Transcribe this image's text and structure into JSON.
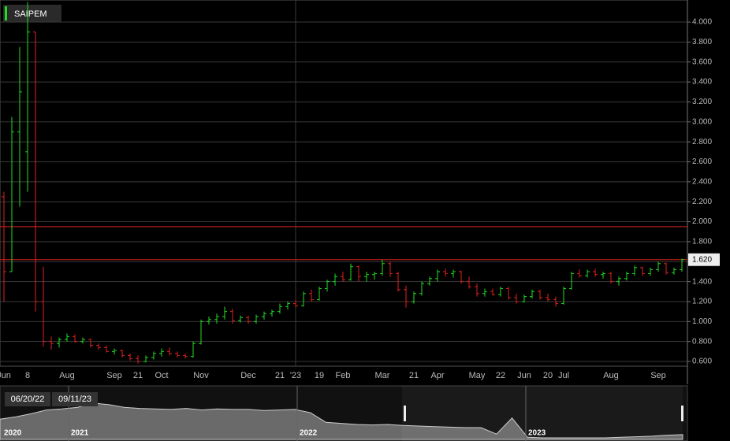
{
  "chart_data": {
    "type": "ohlc",
    "ylim": [
      0.553,
      4.221
    ],
    "yticks": [
      {
        "value": 0.6,
        "label": "0.600"
      },
      {
        "value": 0.8,
        "label": "0.800"
      },
      {
        "value": 1.0,
        "label": "1.000"
      },
      {
        "value": 1.2,
        "label": "1.200"
      },
      {
        "value": 1.4,
        "label": "1.400"
      },
      {
        "value": 1.6,
        "label": "1.600"
      },
      {
        "value": 1.8,
        "label": "1.800"
      },
      {
        "value": 2.0,
        "label": "2.000"
      },
      {
        "value": 2.2,
        "label": "2.200"
      },
      {
        "value": 2.4,
        "label": "2.400"
      },
      {
        "value": 2.6,
        "label": "2.600"
      },
      {
        "value": 2.8,
        "label": "2.800"
      },
      {
        "value": 3.0,
        "label": "3.000"
      },
      {
        "value": 3.2,
        "label": "3.200"
      },
      {
        "value": 3.4,
        "label": "3.400"
      },
      {
        "value": 3.6,
        "label": "3.600"
      },
      {
        "value": 3.8,
        "label": "3.800"
      },
      {
        "value": 4.0,
        "label": "4.000"
      }
    ],
    "grid": true,
    "categories": [
      "Jun",
      null,
      null,
      "8",
      null,
      null,
      null,
      null,
      "Aug",
      null,
      null,
      null,
      null,
      null,
      "Sep",
      null,
      null,
      "21",
      null,
      null,
      "Oct",
      null,
      null,
      null,
      null,
      "Nov",
      null,
      null,
      null,
      null,
      null,
      "Dec",
      null,
      null,
      null,
      "21",
      null,
      "'23",
      null,
      null,
      "19",
      null,
      null,
      "Feb",
      null,
      null,
      null,
      null,
      "Mar",
      null,
      null,
      null,
      "21",
      null,
      null,
      "Apr",
      null,
      null,
      null,
      null,
      "May",
      null,
      null,
      "22",
      null,
      null,
      "Jun",
      null,
      null,
      "20",
      null,
      "Jul",
      null,
      null,
      null,
      null,
      null,
      "Aug",
      null,
      null,
      null,
      null,
      null,
      "Sep",
      null,
      null,
      null
    ],
    "series": [
      {
        "name": "SAIPEM",
        "up_color": "#22dd22",
        "down_color": "#e02020",
        "open": [
          2.25,
          1.5,
          2.9,
          2.7,
          3.9,
          1.2,
          0.8,
          0.78,
          0.82,
          0.85,
          0.8,
          0.82,
          0.76,
          0.74,
          0.7,
          0.71,
          0.66,
          0.63,
          0.6,
          0.64,
          0.68,
          0.7,
          0.68,
          0.66,
          0.65,
          0.78,
          1.0,
          1.02,
          1.05,
          1.1,
          1.01,
          1.04,
          1.0,
          1.05,
          1.08,
          1.1,
          1.15,
          1.18,
          1.16,
          1.28,
          1.22,
          1.33,
          1.4,
          1.45,
          1.42,
          1.55,
          1.45,
          1.47,
          1.48,
          1.58,
          1.48,
          1.32,
          1.2,
          1.28,
          1.38,
          1.43,
          1.5,
          1.48,
          1.5,
          1.4,
          1.35,
          1.28,
          1.3,
          1.27,
          1.33,
          1.24,
          1.2,
          1.25,
          1.3,
          1.24,
          1.22,
          1.18,
          1.33,
          1.48,
          1.46,
          1.5,
          1.47,
          1.48,
          1.4,
          1.43,
          1.48,
          1.54,
          1.48,
          1.52,
          1.58,
          1.49,
          1.52
        ],
        "high": [
          2.3,
          3.05,
          3.75,
          4.2,
          3.9,
          1.55,
          0.85,
          0.84,
          0.88,
          0.87,
          0.84,
          0.83,
          0.78,
          0.76,
          0.73,
          0.72,
          0.68,
          0.66,
          0.66,
          0.7,
          0.73,
          0.74,
          0.7,
          0.68,
          0.8,
          1.02,
          1.05,
          1.08,
          1.15,
          1.13,
          1.06,
          1.06,
          1.07,
          1.1,
          1.12,
          1.18,
          1.2,
          1.22,
          1.3,
          1.32,
          1.35,
          1.42,
          1.48,
          1.5,
          1.58,
          1.56,
          1.5,
          1.5,
          1.62,
          1.6,
          1.5,
          1.36,
          1.3,
          1.4,
          1.45,
          1.52,
          1.53,
          1.52,
          1.51,
          1.45,
          1.38,
          1.33,
          1.33,
          1.35,
          1.35,
          1.28,
          1.27,
          1.32,
          1.32,
          1.28,
          1.25,
          1.35,
          1.5,
          1.52,
          1.52,
          1.53,
          1.5,
          1.5,
          1.45,
          1.5,
          1.56,
          1.55,
          1.54,
          1.6,
          1.59,
          1.54,
          1.63
        ],
        "low": [
          1.2,
          1.5,
          2.15,
          2.3,
          1.1,
          0.75,
          0.72,
          0.74,
          0.8,
          0.79,
          0.78,
          0.74,
          0.72,
          0.69,
          0.67,
          0.64,
          0.61,
          0.58,
          0.59,
          0.62,
          0.65,
          0.66,
          0.64,
          0.63,
          0.64,
          0.77,
          0.97,
          0.98,
          1.02,
          0.98,
          0.99,
          0.98,
          0.98,
          1.02,
          1.05,
          1.08,
          1.12,
          1.14,
          1.15,
          1.2,
          1.21,
          1.3,
          1.36,
          1.4,
          1.41,
          1.4,
          1.4,
          1.42,
          1.46,
          1.45,
          1.3,
          1.14,
          1.18,
          1.26,
          1.36,
          1.4,
          1.45,
          1.44,
          1.38,
          1.33,
          1.25,
          1.25,
          1.26,
          1.25,
          1.22,
          1.18,
          1.19,
          1.23,
          1.22,
          1.2,
          1.15,
          1.17,
          1.32,
          1.44,
          1.44,
          1.45,
          1.43,
          1.38,
          1.36,
          1.41,
          1.46,
          1.46,
          1.46,
          1.5,
          1.47,
          1.47,
          1.5
        ],
        "close": [
          1.5,
          2.9,
          3.3,
          3.9,
          1.2,
          0.8,
          0.78,
          0.82,
          0.85,
          0.8,
          0.82,
          0.76,
          0.74,
          0.7,
          0.71,
          0.66,
          0.63,
          0.6,
          0.64,
          0.68,
          0.7,
          0.68,
          0.66,
          0.65,
          0.78,
          1.0,
          1.02,
          1.05,
          1.1,
          1.01,
          1.04,
          1.0,
          1.05,
          1.08,
          1.1,
          1.15,
          1.18,
          1.16,
          1.28,
          1.22,
          1.33,
          1.4,
          1.45,
          1.42,
          1.55,
          1.45,
          1.47,
          1.48,
          1.58,
          1.48,
          1.32,
          1.2,
          1.28,
          1.38,
          1.43,
          1.5,
          1.48,
          1.5,
          1.4,
          1.35,
          1.28,
          1.3,
          1.27,
          1.33,
          1.24,
          1.2,
          1.25,
          1.3,
          1.24,
          1.22,
          1.18,
          1.33,
          1.48,
          1.46,
          1.5,
          1.47,
          1.48,
          1.4,
          1.43,
          1.48,
          1.54,
          1.48,
          1.52,
          1.58,
          1.49,
          1.52,
          1.62
        ]
      }
    ],
    "level_lines": [
      1.95,
      1.62
    ],
    "line_color": "#d02020",
    "last_price": {
      "value": 1.62,
      "label": "1.620"
    },
    "navigator": {
      "ylim": [
        0,
        100
      ],
      "values": [
        38,
        42,
        48,
        55,
        57,
        60,
        68,
        65,
        60,
        58,
        57,
        56,
        58,
        55,
        57,
        56,
        56,
        54,
        55,
        56,
        50,
        32,
        30,
        28,
        27,
        28,
        26,
        25,
        24,
        23,
        22,
        22,
        10,
        40,
        4,
        3,
        3,
        3,
        3,
        3,
        4,
        5,
        6,
        8,
        9
      ],
      "range_start": "06/20/22",
      "range_end": "09/11/23",
      "years": [
        "2020",
        "2021",
        "2022",
        "2023"
      ]
    }
  }
}
